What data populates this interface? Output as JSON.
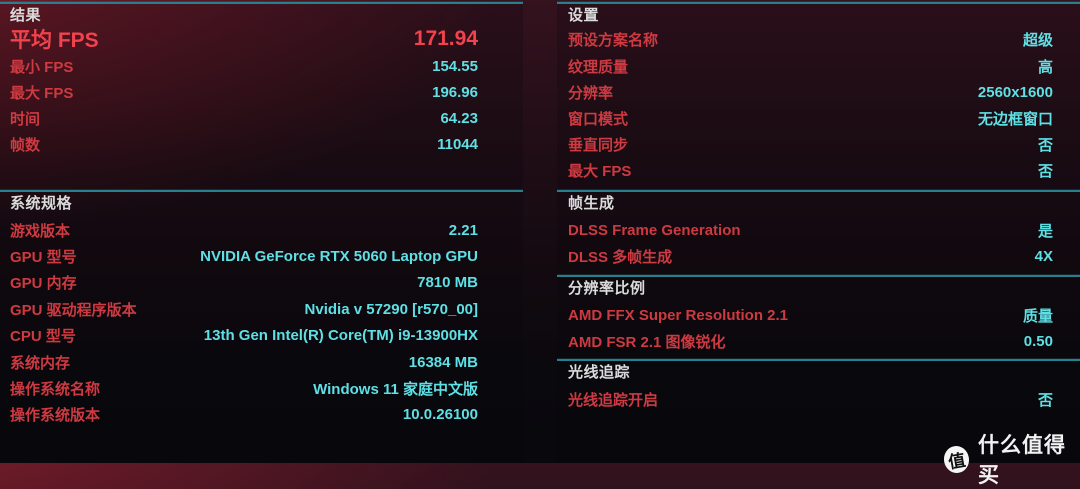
{
  "colors": {
    "label_red": "#cd3a41",
    "emphasis_red": "#f2424d",
    "value_cyan": "#5ee0e5",
    "header_white": "#dadbdb",
    "divider_teal": "#26808d",
    "background_top": "#34121e",
    "background_bottom": "#09080d"
  },
  "panels": {
    "left": {
      "sections": [
        {
          "key": "results",
          "title": "结果",
          "rows": [
            {
              "label": "平均 FPS",
              "value": "171.94",
              "emphasis": true
            },
            {
              "label": "最小 FPS",
              "value": "154.55"
            },
            {
              "label": "最大 FPS",
              "value": "196.96"
            },
            {
              "label": "时间",
              "value": "64.23"
            },
            {
              "label": "帧数",
              "value": "11044"
            }
          ]
        },
        {
          "key": "specs",
          "title": "系统规格",
          "tight": true,
          "rows": [
            {
              "label": "游戏版本",
              "value": "2.21"
            },
            {
              "label": "GPU 型号",
              "value": "NVIDIA GeForce RTX 5060 Laptop GPU"
            },
            {
              "label": "GPU 内存",
              "value": "7810 MB"
            },
            {
              "label": "GPU 驱动程序版本",
              "value": "Nvidia v 57290 [r570_00]"
            },
            {
              "label": "CPU 型号",
              "value": "13th Gen Intel(R) Core(TM) i9-13900HX"
            },
            {
              "label": "系统内存",
              "value": "16384 MB"
            },
            {
              "label": "操作系统名称",
              "value": "Windows 11 家庭中文版"
            },
            {
              "label": "操作系统版本",
              "value": "10.0.26100"
            }
          ]
        }
      ]
    },
    "right": {
      "sections": [
        {
          "key": "settings",
          "title": "设置",
          "rows": [
            {
              "label": "预设方案名称",
              "value": "超级"
            },
            {
              "label": "纹理质量",
              "value": "高"
            },
            {
              "label": "分辨率",
              "value": "2560x1600"
            },
            {
              "label": "窗口模式",
              "value": "无边框窗口"
            },
            {
              "label": "垂直同步",
              "value": "否"
            },
            {
              "label": "最大 FPS",
              "value": "否"
            }
          ]
        },
        {
          "key": "framegen",
          "title": "帧生成",
          "tight": true,
          "rows": [
            {
              "label": "DLSS Frame Generation",
              "value": "是"
            },
            {
              "label": "DLSS 多帧生成",
              "value": "4X"
            }
          ]
        },
        {
          "key": "resscale",
          "title": "分辨率比例",
          "tight": true,
          "rows": [
            {
              "label": "AMD FFX Super Resolution 2.1",
              "value": "质量"
            },
            {
              "label": "AMD FSR 2.1 图像锐化",
              "value": "0.50"
            }
          ]
        },
        {
          "key": "raytracing",
          "title": "光线追踪",
          "tight": true,
          "rows": [
            {
              "label": "光线追踪开启",
              "value": "否"
            }
          ]
        }
      ]
    }
  },
  "watermark": {
    "logo_char": "值",
    "text": "什么值得买"
  }
}
